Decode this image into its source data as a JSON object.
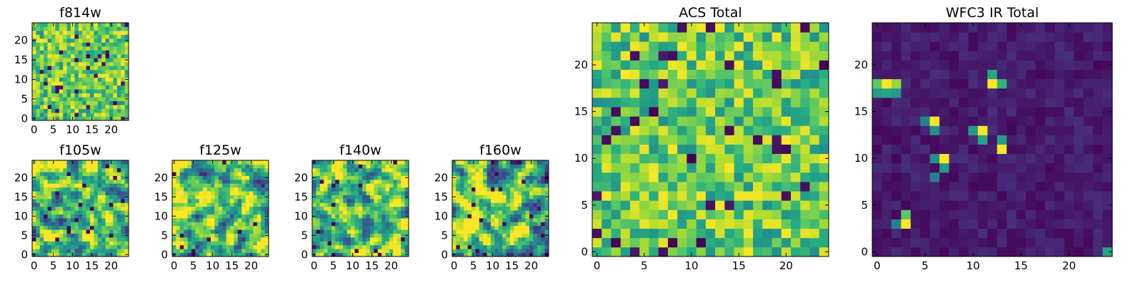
{
  "figure": {
    "description_type": "image-grid",
    "grid_size": 25
  },
  "chart_data": [
    {
      "type": "heatmap",
      "id": "f814w",
      "title": "f814w",
      "colormap": "viridis",
      "pattern": "uniform",
      "seed": 11,
      "x_ticks": [
        "0",
        "5",
        "10",
        "15",
        "20"
      ],
      "y_ticks": [
        "0",
        "5",
        "10",
        "15",
        "20"
      ],
      "xlim": [
        0,
        25
      ],
      "ylim": [
        0,
        25
      ]
    },
    {
      "type": "heatmap",
      "id": "f105w",
      "title": "f105w",
      "colormap": "viridis",
      "pattern": "smooth",
      "seed": 23,
      "x_ticks": [
        "0",
        "5",
        "10",
        "15",
        "20"
      ],
      "y_ticks": [
        "0",
        "5",
        "10",
        "15",
        "20"
      ],
      "xlim": [
        0,
        25
      ],
      "ylim": [
        0,
        25
      ]
    },
    {
      "type": "heatmap",
      "id": "f125w",
      "title": "f125w",
      "colormap": "viridis",
      "pattern": "smooth",
      "seed": 37,
      "x_ticks": [
        "0",
        "5",
        "10",
        "15",
        "20"
      ],
      "y_ticks": [
        "0",
        "5",
        "10",
        "15",
        "20"
      ],
      "xlim": [
        0,
        25
      ],
      "ylim": [
        0,
        25
      ]
    },
    {
      "type": "heatmap",
      "id": "f140w",
      "title": "f140w",
      "colormap": "viridis",
      "pattern": "smooth",
      "seed": 41,
      "x_ticks": [
        "0",
        "5",
        "10",
        "15",
        "20"
      ],
      "y_ticks": [
        "0",
        "5",
        "10",
        "15",
        "20"
      ],
      "xlim": [
        0,
        25
      ],
      "ylim": [
        0,
        25
      ]
    },
    {
      "type": "heatmap",
      "id": "f160w",
      "title": "f160w",
      "colormap": "viridis",
      "pattern": "smooth",
      "seed": 53,
      "x_ticks": [
        "0",
        "5",
        "10",
        "15",
        "20"
      ],
      "y_ticks": [
        "0",
        "5",
        "10",
        "15",
        "20"
      ],
      "xlim": [
        0,
        25
      ],
      "ylim": [
        0,
        25
      ]
    },
    {
      "type": "heatmap",
      "id": "acs-total",
      "title": "ACS Total",
      "colormap": "viridis",
      "pattern": "uniform",
      "seed": 67,
      "x_ticks": [
        "0",
        "5",
        "10",
        "15",
        "20"
      ],
      "y_ticks": [
        "0",
        "5",
        "10",
        "15",
        "20"
      ],
      "xlim": [
        0,
        25
      ],
      "ylim": [
        0,
        25
      ]
    },
    {
      "type": "heatmap",
      "id": "wfc3-ir-total",
      "title": "WFC3 IR Total",
      "colormap": "viridis",
      "pattern": "sparse",
      "seed": 79,
      "x_ticks": [
        "0",
        "5",
        "10",
        "15",
        "20"
      ],
      "y_ticks": [
        "0",
        "5",
        "10",
        "15",
        "20"
      ],
      "xlim": [
        0,
        25
      ],
      "ylim": [
        0,
        25
      ],
      "hot_pixels": [
        {
          "x": 0,
          "y": 18,
          "v": 0.75
        },
        {
          "x": 1,
          "y": 18,
          "v": 1.0
        },
        {
          "x": 2,
          "y": 18,
          "v": 0.85
        },
        {
          "x": 0,
          "y": 17,
          "v": 0.55
        },
        {
          "x": 1,
          "y": 17,
          "v": 0.6
        },
        {
          "x": 2,
          "y": 17,
          "v": 0.55
        },
        {
          "x": 12,
          "y": 19,
          "v": 0.6
        },
        {
          "x": 12,
          "y": 18,
          "v": 1.0
        },
        {
          "x": 13,
          "y": 18,
          "v": 0.65
        },
        {
          "x": 6,
          "y": 14,
          "v": 1.0
        },
        {
          "x": 5,
          "y": 14,
          "v": 0.45
        },
        {
          "x": 6,
          "y": 13,
          "v": 0.5
        },
        {
          "x": 10,
          "y": 13,
          "v": 0.55
        },
        {
          "x": 11,
          "y": 13,
          "v": 1.0
        },
        {
          "x": 11,
          "y": 12,
          "v": 0.6
        },
        {
          "x": 13,
          "y": 12,
          "v": 0.55
        },
        {
          "x": 13,
          "y": 11,
          "v": 1.0
        },
        {
          "x": 7,
          "y": 10,
          "v": 1.0
        },
        {
          "x": 6,
          "y": 10,
          "v": 0.5
        },
        {
          "x": 7,
          "y": 9,
          "v": 0.55
        },
        {
          "x": 6,
          "y": 8,
          "v": 0.45
        },
        {
          "x": 3,
          "y": 4,
          "v": 0.75
        },
        {
          "x": 3,
          "y": 3,
          "v": 1.0
        },
        {
          "x": 2,
          "y": 3,
          "v": 0.45
        },
        {
          "x": 24,
          "y": 0,
          "v": 0.6
        }
      ]
    }
  ]
}
